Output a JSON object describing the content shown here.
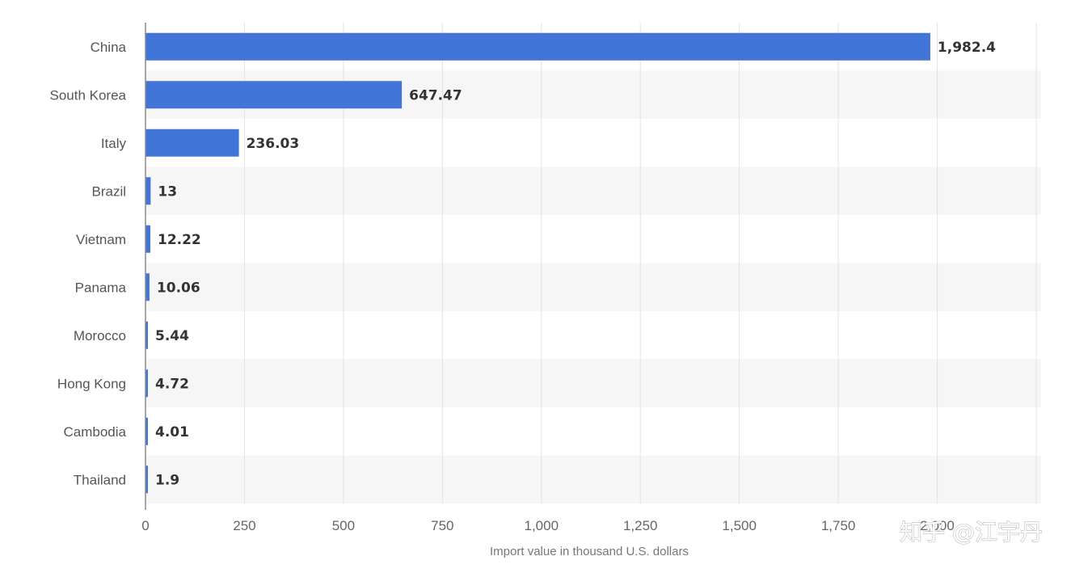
{
  "chart_data": {
    "type": "bar",
    "orientation": "horizontal",
    "categories": [
      "China",
      "South Korea",
      "Italy",
      "Brazil",
      "Vietnam",
      "Panama",
      "Morocco",
      "Hong Kong",
      "Cambodia",
      "Thailand"
    ],
    "values": [
      1982.4,
      647.47,
      236.03,
      13,
      12.22,
      10.06,
      5.44,
      4.72,
      4.01,
      1.9
    ],
    "value_labels": [
      "1,982.4",
      "647.47",
      "236.03",
      "13",
      "12.22",
      "10.06",
      "5.44",
      "4.72",
      "4.01",
      "1.9"
    ],
    "xlabel": "Import value in thousand U.S. dollars",
    "ylabel": "",
    "xlim": [
      0,
      2250
    ],
    "xticks": [
      0,
      250,
      500,
      750,
      1000,
      1250,
      1500,
      1750,
      2000,
      2250
    ],
    "xtick_labels": [
      "0",
      "250",
      "500",
      "750",
      "1,000",
      "1,250",
      "1,500",
      "1,750",
      "2,000",
      ""
    ],
    "grid": "vertical",
    "legend": "none",
    "colors": {
      "bar": "#4275d8",
      "band": "#f6f6f6",
      "grid": "#e3e3e3"
    }
  },
  "watermark": "知乎 @江宇丹"
}
